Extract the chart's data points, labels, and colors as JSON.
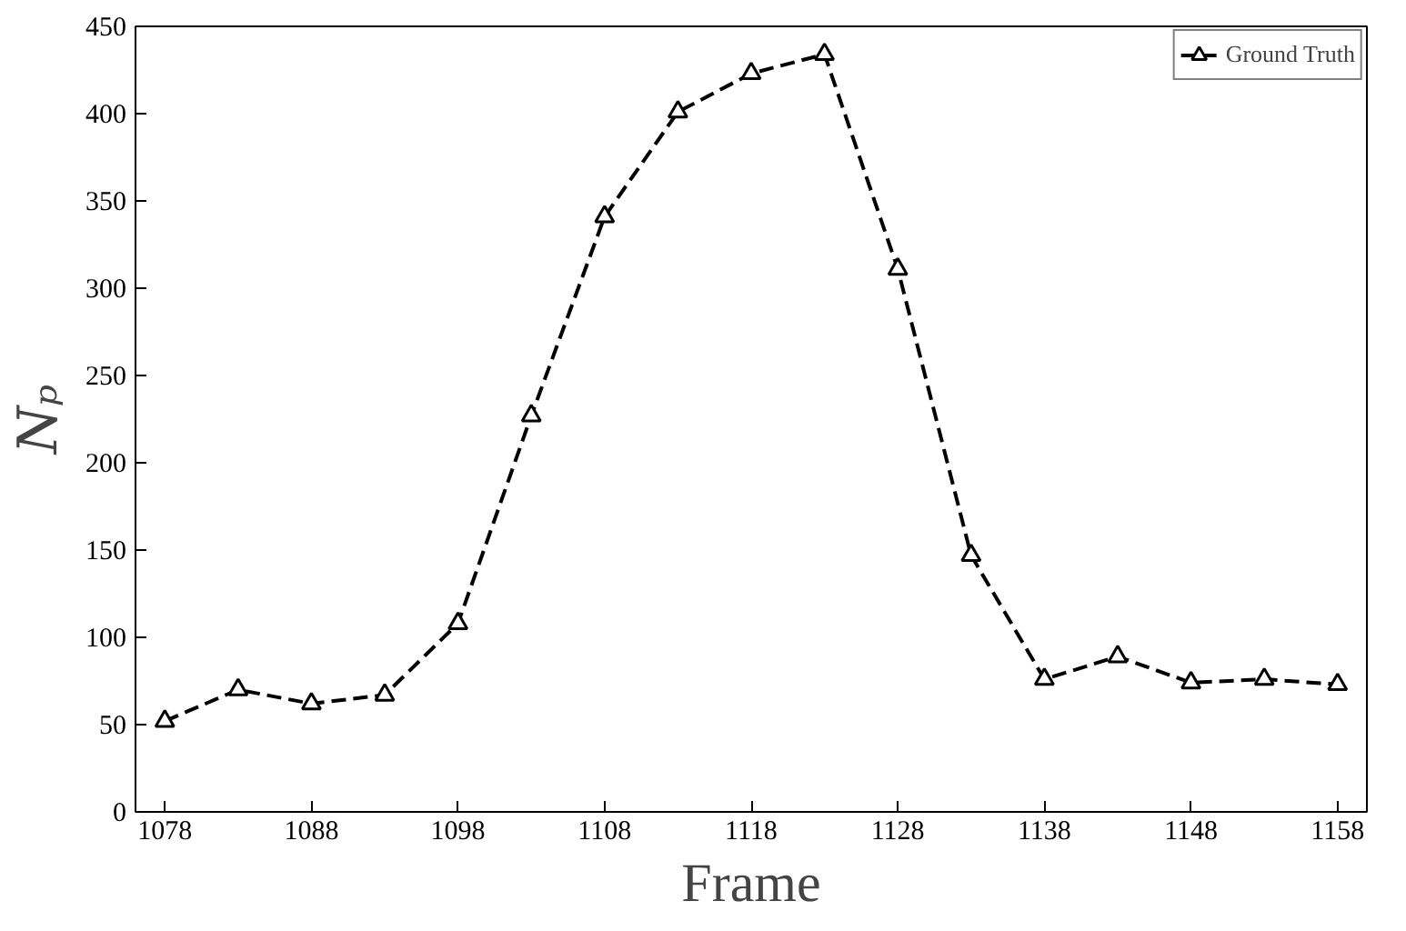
{
  "chart_data": {
    "type": "line",
    "xlabel": "Frame",
    "ylabel": "Nₚ",
    "x": [
      1078,
      1083,
      1088,
      1093,
      1098,
      1103,
      1108,
      1113,
      1118,
      1123,
      1128,
      1133,
      1138,
      1143,
      1148,
      1153,
      1158
    ],
    "series": [
      {
        "name": "Ground Truth",
        "color": "#000000",
        "values": [
          52,
          70,
          62,
          67,
          108,
          227,
          341,
          401,
          423,
          434,
          311,
          147,
          76,
          89,
          74,
          76,
          73
        ]
      }
    ],
    "xlim": [
      1076,
      1160
    ],
    "xticks": [
      1078,
      1088,
      1098,
      1108,
      1118,
      1128,
      1138,
      1148,
      1158
    ],
    "ylim": [
      0,
      450
    ],
    "yticks": [
      0,
      50,
      100,
      150,
      200,
      250,
      300,
      350,
      400,
      450
    ],
    "grid": false,
    "legend": "top right",
    "marker": "triangle",
    "line_style": "dashed"
  }
}
